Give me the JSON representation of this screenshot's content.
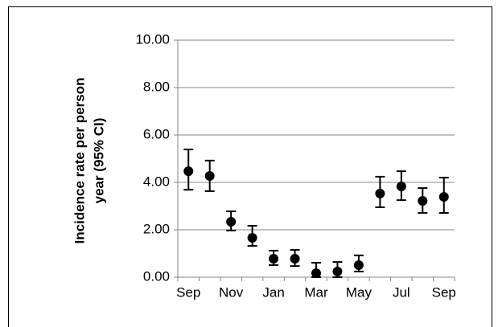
{
  "chart_data": {
    "type": "errorbar",
    "y_label": [
      "Incidence rate per person",
      "year (95% CI)"
    ],
    "categories": [
      "Sep",
      null,
      "Nov",
      null,
      "Jan",
      null,
      "Mar",
      null,
      "May",
      null,
      "Jul",
      null,
      "Sep"
    ],
    "values": [
      4.47,
      4.27,
      2.34,
      1.66,
      0.78,
      0.78,
      0.17,
      0.24,
      0.51,
      3.53,
      3.83,
      3.22,
      3.39
    ],
    "lower": [
      3.69,
      3.63,
      1.97,
      1.32,
      0.51,
      0.47,
      0.0,
      0.0,
      0.24,
      2.95,
      3.25,
      2.71,
      2.71
    ],
    "upper": [
      5.39,
      4.92,
      2.78,
      2.17,
      1.12,
      1.15,
      0.61,
      0.64,
      0.92,
      4.24,
      4.47,
      3.76,
      4.2
    ],
    "color": "#000000",
    "ylim": [
      0,
      10
    ],
    "yticks": [
      {
        "value": 0,
        "label": "0.00"
      },
      {
        "value": 2,
        "label": "2.00"
      },
      {
        "value": 4,
        "label": "4.00"
      },
      {
        "value": 6,
        "label": "6.00"
      },
      {
        "value": 8,
        "label": "8.00"
      },
      {
        "value": 10,
        "label": "10.00"
      }
    ],
    "grid": true
  }
}
